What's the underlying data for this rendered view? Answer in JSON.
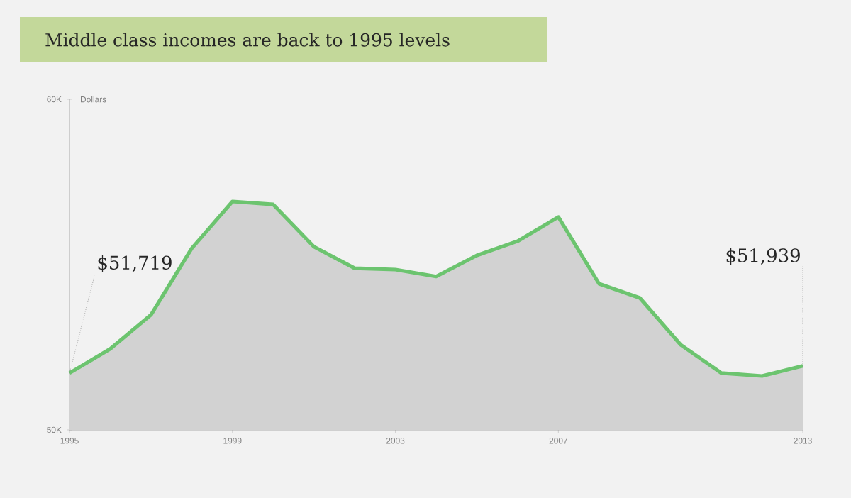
{
  "chart_data": {
    "type": "area",
    "title": "Middle class incomes are back to 1995 levels",
    "ylabel": "Dollars",
    "x": [
      1995,
      1996,
      1997,
      1998,
      1999,
      2000,
      2001,
      2002,
      2003,
      2004,
      2005,
      2006,
      2007,
      2008,
      2009,
      2010,
      2011,
      2012,
      2013
    ],
    "values": [
      51719,
      52450,
      53480,
      55490,
      56910,
      56820,
      55540,
      54890,
      54850,
      54640,
      55280,
      55710,
      56440,
      54420,
      53990,
      52580,
      51720,
      51630,
      51939
    ],
    "color": "#6cc46f",
    "xlim": [
      1995,
      2013
    ],
    "ylim": [
      50000,
      60000
    ],
    "xticks": [
      1995,
      1999,
      2003,
      2007,
      2013
    ],
    "yticks": [
      {
        "value": 50000,
        "label": "50K"
      },
      {
        "value": 60000,
        "label": "60K"
      }
    ],
    "annotations": [
      {
        "text": "$51,719",
        "x": 1995,
        "y": 51719
      },
      {
        "text": "$51,939",
        "x": 2013,
        "y": 51939
      }
    ]
  }
}
